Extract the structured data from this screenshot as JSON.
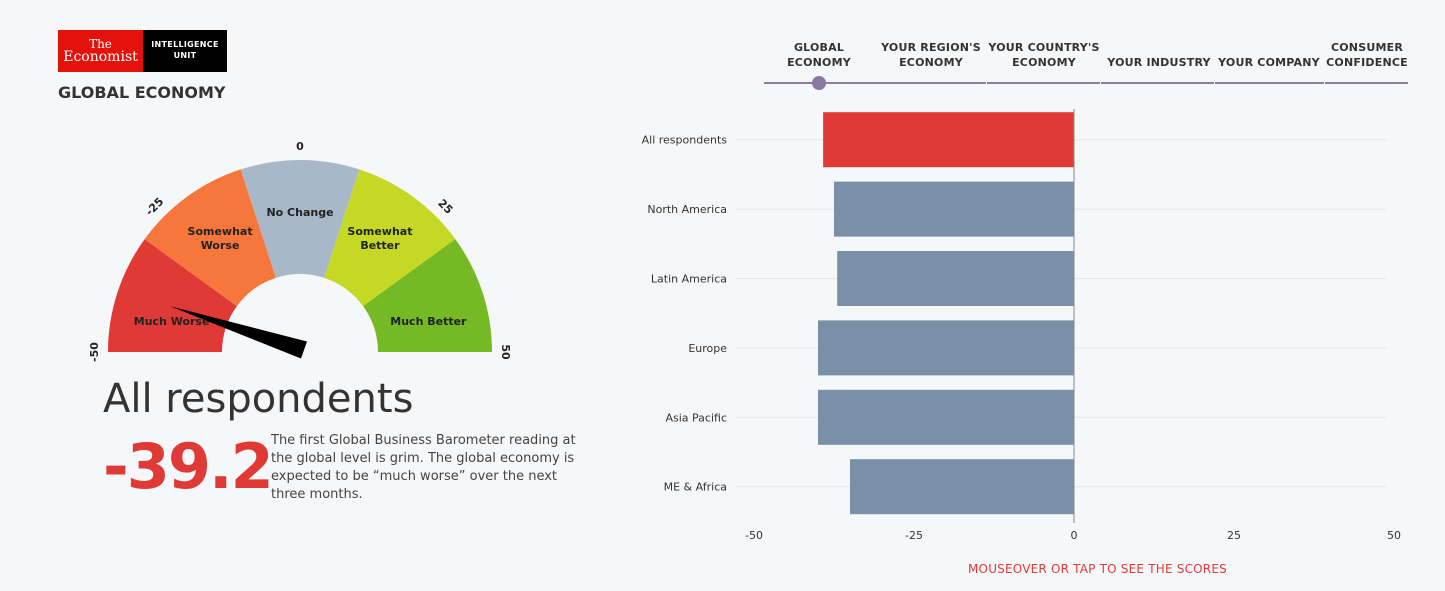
{
  "logo": {
    "line1": "The",
    "line2": "Economist",
    "unit1": "INTELLIGENCE",
    "unit2": "UNIT"
  },
  "section_title": "GLOBAL ECONOMY",
  "gauge": {
    "ticks": [
      "-50",
      "-25",
      "0",
      "25",
      "50"
    ],
    "segments": [
      {
        "label": [
          "Much Worse"
        ],
        "color": "#e03a37"
      },
      {
        "label": [
          "Somewhat",
          "Worse"
        ],
        "color": "#f7763c"
      },
      {
        "label": [
          "No Change"
        ],
        "color": "#a8b8c8"
      },
      {
        "label": [
          "Somewhat",
          "Better"
        ],
        "color": "#c5d826"
      },
      {
        "label": [
          "Much Better"
        ],
        "color": "#75b924"
      }
    ],
    "needle_value": -39.2
  },
  "respondent_title": "All respondents",
  "score": "-39.2",
  "description": "The first Global Business Barometer reading at the global level is grim. The global economy is expected to be “much worse” over the next three months.",
  "tabs": [
    {
      "line1": "GLOBAL",
      "line2": "ECONOMY"
    },
    {
      "line1": "YOUR REGION'S",
      "line2": "ECONOMY"
    },
    {
      "line1": "YOUR COUNTRY'S",
      "line2": "ECONOMY"
    },
    {
      "line1": "",
      "line2": "YOUR INDUSTRY"
    },
    {
      "line1": "",
      "line2": "YOUR COMPANY"
    },
    {
      "line1": "CONSUMER",
      "line2": "CONFIDENCE"
    }
  ],
  "chart_data": {
    "type": "bar",
    "orientation": "horizontal",
    "categories": [
      "All respondents",
      "North America",
      "Latin America",
      "Europe",
      "Asia Pacific",
      "ME & Africa"
    ],
    "values": [
      -39.2,
      -37.5,
      -37,
      -40,
      -40,
      -35
    ],
    "highlight_index": 0,
    "xlim": [
      -50,
      50
    ],
    "xticks": [
      -50,
      -25,
      0,
      25,
      50
    ],
    "bar_color": "#7a8fa8",
    "highlight_color": "#e03a37"
  },
  "hint": "MOUSEOVER OR TAP TO SEE THE SCORES"
}
